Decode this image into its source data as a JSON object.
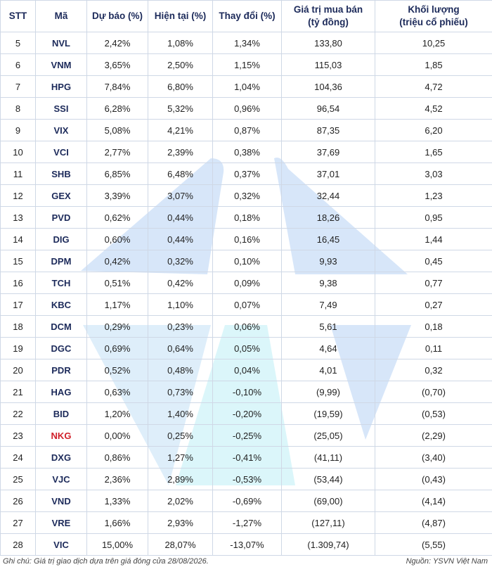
{
  "table": {
    "headers": [
      "STT",
      "Mã",
      "Dự báo (%)",
      "Hiện tại (%)",
      "Thay đổi (%)",
      "Giá trị mua bán\n(tỷ đồng)",
      "Khối lượng\n(triệu cổ phiếu)"
    ],
    "rows": [
      [
        "5",
        "NVL",
        "2,42%",
        "1,08%",
        "1,34%",
        "133,80",
        "10,25"
      ],
      [
        "6",
        "VNM",
        "3,65%",
        "2,50%",
        "1,15%",
        "115,03",
        "1,85"
      ],
      [
        "7",
        "HPG",
        "7,84%",
        "6,80%",
        "1,04%",
        "104,36",
        "4,72"
      ],
      [
        "8",
        "SSI",
        "6,28%",
        "5,32%",
        "0,96%",
        "96,54",
        "4,52"
      ],
      [
        "9",
        "VIX",
        "5,08%",
        "4,21%",
        "0,87%",
        "87,35",
        "6,20"
      ],
      [
        "10",
        "VCI",
        "2,77%",
        "2,39%",
        "0,38%",
        "37,69",
        "1,65"
      ],
      [
        "11",
        "SHB",
        "6,85%",
        "6,48%",
        "0,37%",
        "37,01",
        "3,03"
      ],
      [
        "12",
        "GEX",
        "3,39%",
        "3,07%",
        "0,32%",
        "32,44",
        "1,23"
      ],
      [
        "13",
        "PVD",
        "0,62%",
        "0,44%",
        "0,18%",
        "18,26",
        "0,95"
      ],
      [
        "14",
        "DIG",
        "0,60%",
        "0,44%",
        "0,16%",
        "16,45",
        "1,44"
      ],
      [
        "15",
        "DPM",
        "0,42%",
        "0,32%",
        "0,10%",
        "9,93",
        "0,45"
      ],
      [
        "16",
        "TCH",
        "0,51%",
        "0,42%",
        "0,09%",
        "9,38",
        "0,77"
      ],
      [
        "17",
        "KBC",
        "1,17%",
        "1,10%",
        "0,07%",
        "7,49",
        "0,27"
      ],
      [
        "18",
        "DCM",
        "0,29%",
        "0,23%",
        "0,06%",
        "5,61",
        "0,18"
      ],
      [
        "19",
        "DGC",
        "0,69%",
        "0,64%",
        "0,05%",
        "4,64",
        "0,11"
      ],
      [
        "20",
        "PDR",
        "0,52%",
        "0,48%",
        "0,04%",
        "4,01",
        "0,32"
      ],
      [
        "21",
        "HAG",
        "0,63%",
        "0,73%",
        "-0,10%",
        "(9,99)",
        "(0,70)"
      ],
      [
        "22",
        "BID",
        "1,20%",
        "1,40%",
        "-0,20%",
        "(19,59)",
        "(0,53)"
      ],
      [
        "23",
        "NKG",
        "0,00%",
        "0,25%",
        "-0,25%",
        "(25,05)",
        "(2,29)"
      ],
      [
        "24",
        "DXG",
        "0,86%",
        "1,27%",
        "-0,41%",
        "(41,11)",
        "(3,40)"
      ],
      [
        "25",
        "VJC",
        "2,36%",
        "2,89%",
        "-0,53%",
        "(53,44)",
        "(0,43)"
      ],
      [
        "26",
        "VND",
        "1,33%",
        "2,02%",
        "-0,69%",
        "(69,00)",
        "(4,14)"
      ],
      [
        "27",
        "VRE",
        "1,66%",
        "2,93%",
        "-1,27%",
        "(127,11)",
        "(4,87)"
      ],
      [
        "28",
        "VIC",
        "15,00%",
        "28,07%",
        "-13,07%",
        "(1.309,74)",
        "(5,55)"
      ]
    ]
  },
  "footer": {
    "note": "Ghi chú: Giá trị giao dịch dựa trên giá đóng cửa 28/08/2026.",
    "source": "Nguồn: YSVN Việt Nam"
  }
}
